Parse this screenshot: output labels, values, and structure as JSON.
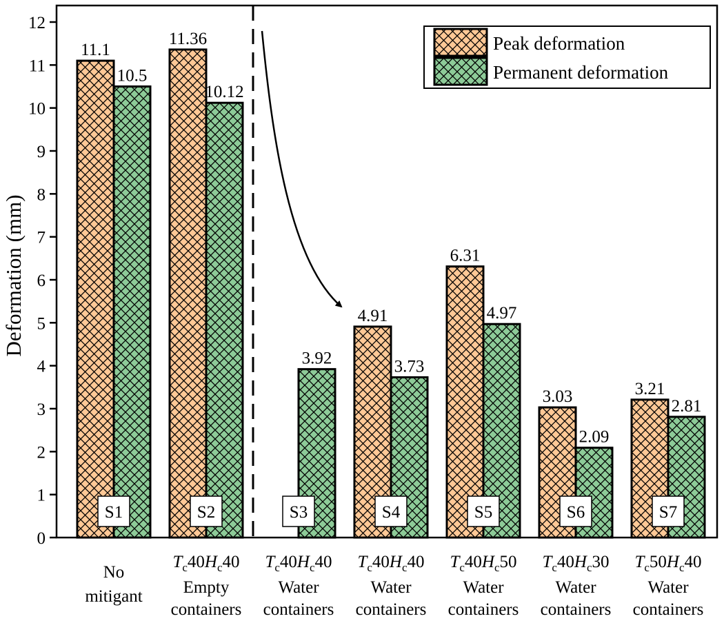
{
  "chart_data": {
    "type": "bar",
    "title": "",
    "xlabel": "",
    "ylabel": "Deformation (mm)",
    "ylim": [
      0,
      12
    ],
    "yticks": [
      0,
      1,
      2,
      3,
      4,
      5,
      6,
      7,
      8,
      9,
      10,
      11,
      12
    ],
    "grid": false,
    "legend_position": "top-right",
    "colors": {
      "peak": "#FFC896",
      "permanent": "#8DCB98"
    },
    "categories": [
      {
        "tag": "S1",
        "line1_plain": "No",
        "line1": null,
        "line2": "mitigant"
      },
      {
        "tag": "S2",
        "line1": {
          "t": "T",
          "tsub": "c",
          "tval": "40",
          "h": "H",
          "hsub": "c",
          "hval": "40"
        },
        "line2": "Empty containers"
      },
      {
        "tag": "S3",
        "line1": {
          "t": "T",
          "tsub": "c",
          "tval": "40",
          "h": "H",
          "hsub": "c",
          "hval": "40"
        },
        "line2": "Water containers"
      },
      {
        "tag": "S4",
        "line1": {
          "t": "T",
          "tsub": "c",
          "tval": "40",
          "h": "H",
          "hsub": "c",
          "hval": "40"
        },
        "line2": "Water containers"
      },
      {
        "tag": "S5",
        "line1": {
          "t": "T",
          "tsub": "c",
          "tval": "40",
          "h": "H",
          "hsub": "c",
          "hval": "50"
        },
        "line2": "Water containers"
      },
      {
        "tag": "S6",
        "line1": {
          "t": "T",
          "tsub": "c",
          "tval": "40",
          "h": "H",
          "hsub": "c",
          "hval": "30"
        },
        "line2": "Water containers"
      },
      {
        "tag": "S7",
        "line1": {
          "t": "T",
          "tsub": "c",
          "tval": "50",
          "h": "H",
          "hsub": "c",
          "hval": "40"
        },
        "line2": "Water containers"
      }
    ],
    "series": [
      {
        "name": "Peak deformation",
        "key": "peak",
        "values": [
          11.1,
          11.36,
          null,
          4.91,
          6.31,
          3.03,
          3.21
        ],
        "labels": [
          "11.1",
          "11.36",
          "",
          "4.91",
          "6.31",
          "3.03",
          "3.21"
        ]
      },
      {
        "name": "Permanent deformation",
        "key": "permanent",
        "values": [
          10.5,
          10.12,
          3.92,
          3.73,
          4.97,
          2.09,
          2.81
        ],
        "labels": [
          "10.5",
          "10.12",
          "3.92",
          "3.73",
          "4.97",
          "2.09",
          "2.81"
        ]
      }
    ]
  }
}
